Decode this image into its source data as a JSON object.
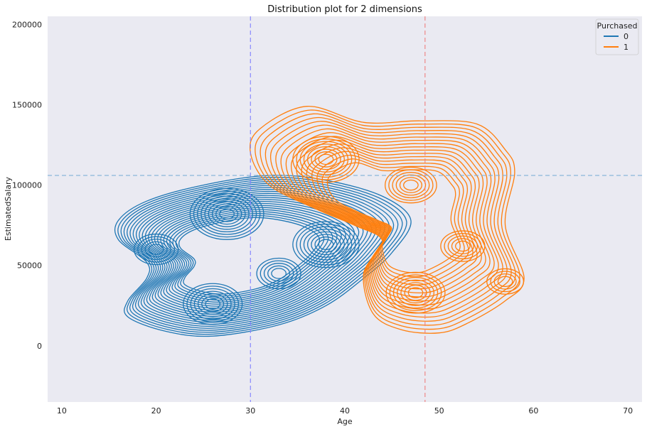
{
  "chart_data": {
    "type": "contour",
    "title": "Distribution plot for 2 dimensions",
    "xlabel": "Age",
    "ylabel": "EstimatedSalary",
    "xlim": [
      8.5,
      71.5
    ],
    "ylim": [
      -35000,
      205000
    ],
    "xticks": [
      10,
      20,
      30,
      40,
      50,
      60,
      70
    ],
    "yticks": [
      0,
      50000,
      100000,
      150000,
      200000
    ],
    "grid": false,
    "background": "#eaeaf2",
    "legend": {
      "title": "Purchased",
      "position": "top-right"
    },
    "reference_lines": [
      {
        "orientation": "vertical",
        "value": 30,
        "color": "#8080ff",
        "style": "dashed"
      },
      {
        "orientation": "vertical",
        "value": 48.5,
        "color": "#f08080",
        "style": "dashed"
      },
      {
        "orientation": "horizontal",
        "value": 106000,
        "color": "#7aaed6",
        "style": "dashed"
      }
    ],
    "series": [
      {
        "name": "0",
        "color": "#1f77b4",
        "density_peaks": [
          {
            "x": 27.5,
            "y": 82000,
            "weight": 1.0
          },
          {
            "x": 38.0,
            "y": 63000,
            "weight": 0.9
          },
          {
            "x": 26.0,
            "y": 26000,
            "weight": 0.8
          },
          {
            "x": 20.0,
            "y": 60000,
            "weight": 0.6
          },
          {
            "x": 33.0,
            "y": 45000,
            "weight": 0.6
          }
        ],
        "outer_boundary": [
          [
            16,
            78000
          ],
          [
            19,
            90000
          ],
          [
            25,
            100000
          ],
          [
            32,
            106000
          ],
          [
            38,
            103000
          ],
          [
            44,
            93000
          ],
          [
            47,
            78000
          ],
          [
            45,
            58000
          ],
          [
            42,
            42000
          ],
          [
            38,
            25000
          ],
          [
            33,
            13000
          ],
          [
            26,
            6000
          ],
          [
            21,
            9000
          ],
          [
            17,
            18000
          ],
          [
            17,
            28000
          ],
          [
            19,
            42000
          ],
          [
            19,
            52000
          ],
          [
            16,
            66000
          ]
        ]
      },
      {
        "name": "1",
        "color": "#ff7f0e",
        "density_peaks": [
          {
            "x": 38.0,
            "y": 116000,
            "weight": 1.0
          },
          {
            "x": 47.0,
            "y": 100000,
            "weight": 0.8
          },
          {
            "x": 47.5,
            "y": 33000,
            "weight": 0.9
          },
          {
            "x": 52.5,
            "y": 62000,
            "weight": 0.6
          },
          {
            "x": 57.0,
            "y": 40000,
            "weight": 0.5
          }
        ],
        "outer_boundary": [
          [
            31,
            135000
          ],
          [
            36,
            149000
          ],
          [
            42,
            139000
          ],
          [
            48,
            140000
          ],
          [
            54,
            138000
          ],
          [
            57,
            122000
          ],
          [
            58,
            108000
          ],
          [
            57,
            75000
          ],
          [
            59,
            42000
          ],
          [
            57,
            28000
          ],
          [
            53,
            14000
          ],
          [
            50,
            8000
          ],
          [
            46,
            10000
          ],
          [
            43,
            20000
          ],
          [
            42,
            45000
          ],
          [
            44,
            65000
          ],
          [
            41,
            75000
          ],
          [
            37,
            85000
          ],
          [
            32,
            100000
          ],
          [
            30,
            120000
          ]
        ]
      }
    ]
  }
}
